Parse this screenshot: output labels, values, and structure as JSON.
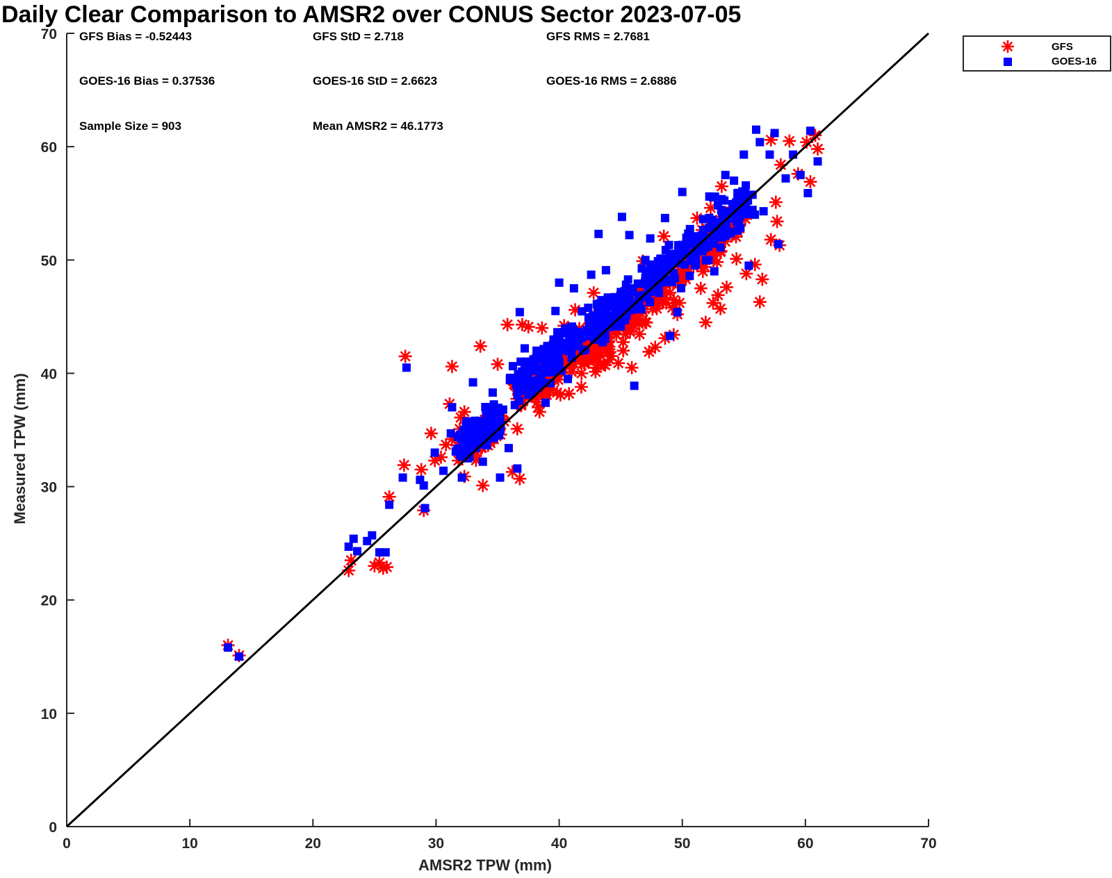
{
  "chart_data": {
    "type": "scatter",
    "title": "Daily Clear Comparison to AMSR2 over CONUS Sector 2023-07-05",
    "xlabel": "AMSR2 TPW (mm)",
    "ylabel": "Measured TPW (mm)",
    "xlim": [
      0,
      70
    ],
    "ylim": [
      0,
      70
    ],
    "xticks": [
      "0",
      "10",
      "20",
      "30",
      "40",
      "50",
      "60",
      "70"
    ],
    "yticks": [
      "0",
      "10",
      "20",
      "30",
      "40",
      "50",
      "60",
      "70"
    ],
    "reference_line": {
      "name": "1:1 line",
      "x": [
        0,
        70
      ],
      "y": [
        0,
        70
      ]
    },
    "stats": {
      "gfs_bias": "GFS Bias = -0.52443",
      "gfs_std": "GFS StD = 2.718",
      "gfs_rms": "GFS RMS = 2.7681",
      "goes_bias": "GOES-16 Bias = 0.37536",
      "goes_std": "GOES-16 StD = 2.6623",
      "goes_rms": "GOES-16 RMS = 2.6886",
      "sample_size": "Sample Size = 903",
      "mean_amsr2": "Mean AMSR2 = 46.1773"
    },
    "legend_position": "top-right, outside axes",
    "series": [
      {
        "name": "GFS",
        "marker": "asterisk",
        "color": "#ff0000",
        "points": [
          [
            13.1,
            16.0
          ],
          [
            14.0,
            15.1
          ],
          [
            22.9,
            22.6
          ],
          [
            23.1,
            23.5
          ],
          [
            25.0,
            23.0
          ],
          [
            25.7,
            22.8
          ],
          [
            26.0,
            22.9
          ],
          [
            25.4,
            23.3
          ],
          [
            26.2,
            29.1
          ],
          [
            27.5,
            41.5
          ],
          [
            27.4,
            31.9
          ],
          [
            28.8,
            31.5
          ],
          [
            29.0,
            27.9
          ],
          [
            29.6,
            34.7
          ],
          [
            30.4,
            32.6
          ],
          [
            31.1,
            37.3
          ],
          [
            31.3,
            40.6
          ],
          [
            32.3,
            30.9
          ],
          [
            32.8,
            33.8
          ],
          [
            33.6,
            42.4
          ],
          [
            33.8,
            30.1
          ],
          [
            35.0,
            40.8
          ],
          [
            35.8,
            44.3
          ],
          [
            36.2,
            31.3
          ],
          [
            36.8,
            30.7
          ],
          [
            37.0,
            44.3
          ],
          [
            37.5,
            44.1
          ],
          [
            38.6,
            44.0
          ],
          [
            38.3,
            37.0
          ],
          [
            39.0,
            38.1
          ],
          [
            40.1,
            38.1
          ],
          [
            40.8,
            38.2
          ],
          [
            40.4,
            44.2
          ],
          [
            41.8,
            38.8
          ],
          [
            43.0,
            40.5
          ],
          [
            43.6,
            40.8
          ],
          [
            44.1,
            41.2
          ],
          [
            44.8,
            40.9
          ],
          [
            45.9,
            40.5
          ],
          [
            45.2,
            42.0
          ],
          [
            47.3,
            41.9
          ],
          [
            47.8,
            42.3
          ],
          [
            48.6,
            43.1
          ],
          [
            48.5,
            52.1
          ],
          [
            49.3,
            43.4
          ],
          [
            49.6,
            45.2
          ],
          [
            50.2,
            49.9
          ],
          [
            50.7,
            50.6
          ],
          [
            51.5,
            47.5
          ],
          [
            51.9,
            44.5
          ],
          [
            52.5,
            46.2
          ],
          [
            53.1,
            45.7
          ],
          [
            52.9,
            46.9
          ],
          [
            53.6,
            47.6
          ],
          [
            54.4,
            50.1
          ],
          [
            55.2,
            48.8
          ],
          [
            55.9,
            49.6
          ],
          [
            56.3,
            46.3
          ],
          [
            56.5,
            48.3
          ],
          [
            57.2,
            51.8
          ],
          [
            57.7,
            53.4
          ],
          [
            57.9,
            51.3
          ],
          [
            57.6,
            55.1
          ],
          [
            57.2,
            60.6
          ],
          [
            58.0,
            58.4
          ],
          [
            58.7,
            60.5
          ],
          [
            59.4,
            57.6
          ],
          [
            60.1,
            60.4
          ],
          [
            60.4,
            56.9
          ],
          [
            61.0,
            59.8
          ],
          [
            60.8,
            61.0
          ],
          [
            53.2,
            56.5
          ],
          [
            54.1,
            52.8
          ],
          [
            51.2,
            53.7
          ],
          [
            52.3,
            54.6
          ],
          [
            50.5,
            51.4
          ],
          [
            46.8,
            49.9
          ],
          [
            42.8,
            47.1
          ],
          [
            41.3,
            45.6
          ],
          [
            38.4,
            36.6
          ],
          [
            36.6,
            35.1
          ],
          [
            34.7,
            34.2
          ],
          [
            33.2,
            34.3
          ],
          [
            32.0,
            36.1
          ],
          [
            31.3,
            34.2
          ],
          [
            30.8,
            33.7
          ],
          [
            29.9,
            32.3
          ],
          [
            32.3,
            36.6
          ]
        ]
      },
      {
        "name": "GOES-16",
        "marker": "square",
        "color": "#0000ff",
        "points": [
          [
            13.1,
            15.8
          ],
          [
            14.0,
            15.0
          ],
          [
            22.9,
            24.7
          ],
          [
            23.3,
            25.4
          ],
          [
            23.6,
            24.3
          ],
          [
            24.4,
            25.2
          ],
          [
            24.8,
            25.7
          ],
          [
            25.4,
            24.2
          ],
          [
            25.9,
            24.2
          ],
          [
            26.2,
            28.4
          ],
          [
            27.3,
            30.8
          ],
          [
            27.6,
            40.5
          ],
          [
            28.7,
            30.6
          ],
          [
            29.0,
            30.1
          ],
          [
            29.1,
            28.1
          ],
          [
            29.9,
            33.0
          ],
          [
            30.6,
            31.4
          ],
          [
            31.2,
            34.7
          ],
          [
            31.3,
            37.0
          ],
          [
            32.1,
            30.8
          ],
          [
            32.6,
            32.5
          ],
          [
            33.0,
            39.2
          ],
          [
            33.8,
            32.2
          ],
          [
            34.6,
            38.3
          ],
          [
            35.2,
            30.8
          ],
          [
            35.9,
            33.4
          ],
          [
            36.0,
            39.4
          ],
          [
            36.6,
            31.6
          ],
          [
            36.8,
            45.4
          ],
          [
            37.2,
            42.2
          ],
          [
            38.0,
            39.1
          ],
          [
            38.9,
            37.4
          ],
          [
            39.7,
            45.5
          ],
          [
            40.0,
            48.0
          ],
          [
            40.7,
            39.5
          ],
          [
            41.2,
            47.5
          ],
          [
            41.9,
            42.0
          ],
          [
            42.6,
            48.7
          ],
          [
            43.2,
            52.3
          ],
          [
            43.8,
            49.1
          ],
          [
            44.3,
            46.6
          ],
          [
            45.1,
            53.8
          ],
          [
            45.7,
            52.2
          ],
          [
            46.1,
            38.9
          ],
          [
            47.0,
            50.0
          ],
          [
            47.4,
            51.9
          ],
          [
            48.1,
            47.1
          ],
          [
            48.6,
            53.7
          ],
          [
            49.0,
            43.3
          ],
          [
            49.6,
            45.4
          ],
          [
            50.0,
            56.0
          ],
          [
            50.6,
            48.6
          ],
          [
            51.1,
            50.4
          ],
          [
            51.7,
            53.6
          ],
          [
            52.2,
            55.6
          ],
          [
            52.6,
            49.0
          ],
          [
            53.1,
            51.1
          ],
          [
            53.5,
            57.5
          ],
          [
            54.2,
            57.0
          ],
          [
            54.5,
            52.6
          ],
          [
            55.0,
            59.3
          ],
          [
            55.4,
            49.5
          ],
          [
            56.0,
            61.5
          ],
          [
            56.3,
            60.4
          ],
          [
            56.6,
            54.3
          ],
          [
            57.1,
            59.3
          ],
          [
            57.5,
            61.2
          ],
          [
            57.8,
            51.4
          ],
          [
            58.4,
            57.2
          ],
          [
            59.0,
            59.3
          ],
          [
            59.6,
            57.5
          ],
          [
            60.2,
            55.9
          ],
          [
            60.4,
            61.4
          ],
          [
            61.0,
            58.7
          ],
          [
            54.7,
            54.0
          ],
          [
            53.8,
            52.5
          ],
          [
            52.9,
            53.2
          ],
          [
            51.4,
            50.9
          ],
          [
            50.2,
            49.6
          ],
          [
            49.4,
            48.4
          ],
          [
            48.0,
            48.1
          ],
          [
            46.8,
            46.7
          ],
          [
            45.6,
            45.9
          ],
          [
            44.6,
            44.8
          ],
          [
            43.4,
            44.2
          ],
          [
            42.2,
            43.3
          ],
          [
            41.0,
            42.1
          ],
          [
            39.6,
            40.8
          ],
          [
            38.6,
            39.2
          ],
          [
            37.5,
            38.1
          ],
          [
            36.4,
            37.2
          ],
          [
            35.2,
            35.8
          ],
          [
            34.0,
            35.2
          ],
          [
            33.0,
            34.6
          ],
          [
            32.2,
            33.7
          ],
          [
            31.6,
            33.1
          ]
        ]
      }
    ],
    "dense_clouds": [
      {
        "series": "GOES-16",
        "x_center": 49.0,
        "y_center": 49.5,
        "slope": 0.95,
        "spread": 1.4,
        "length": 13.0,
        "count": 260
      },
      {
        "series": "GFS",
        "x_center": 48.5,
        "y_center": 47.6,
        "slope": 0.95,
        "spread": 1.4,
        "length": 13.0,
        "count": 220
      },
      {
        "series": "GOES-16",
        "x_center": 40.0,
        "y_center": 42.0,
        "slope": 0.85,
        "spread": 1.3,
        "length": 7.5,
        "count": 170
      },
      {
        "series": "GFS",
        "x_center": 40.2,
        "y_center": 40.8,
        "slope": 0.85,
        "spread": 1.3,
        "length": 7.5,
        "count": 140
      },
      {
        "series": "GOES-16",
        "x_center": 33.6,
        "y_center": 35.0,
        "slope": 0.75,
        "spread": 1.1,
        "length": 3.2,
        "count": 130
      },
      {
        "series": "GFS",
        "x_center": 33.6,
        "y_center": 34.4,
        "slope": 0.75,
        "spread": 1.1,
        "length": 3.2,
        "count": 90
      }
    ]
  }
}
